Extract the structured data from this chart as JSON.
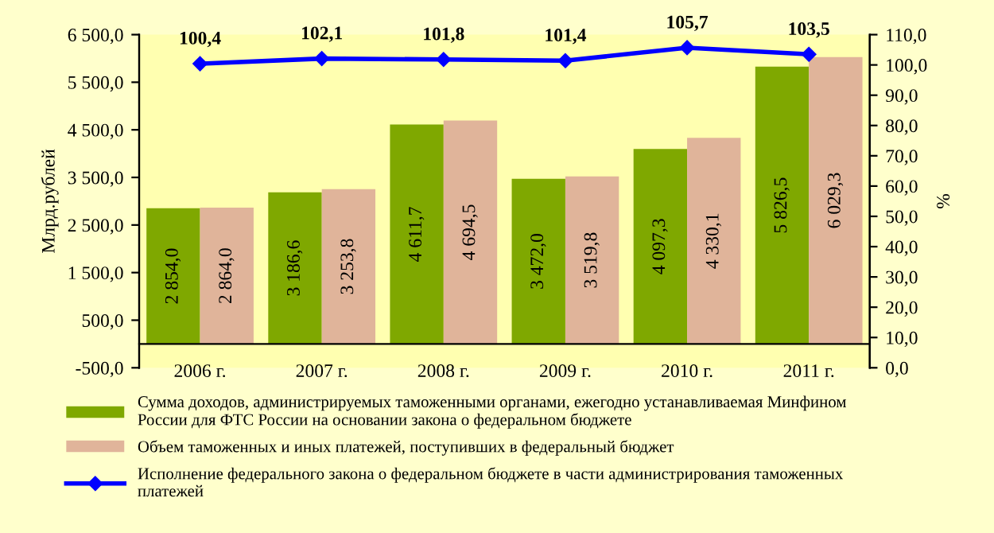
{
  "chart_data": {
    "type": "bar",
    "ylabel": "Млрд.рублей",
    "y2label": "%",
    "categories": [
      "2006 г.",
      "2007 г.",
      "2008 г.",
      "2009 г.",
      "2010 г.",
      "2011 г."
    ],
    "series": [
      {
        "name": "Сумма доходов, администрируемых таможенными органами, ежегодно устанавливаемая Минфином России для ФТС России на основании закона о федеральном бюджете",
        "color": "#7fa800",
        "values": [
          2854.0,
          3186.6,
          4611.7,
          3472.0,
          4097.3,
          5826.5
        ],
        "value_labels": [
          "2 854,0",
          "3 186,6",
          "4 611,7",
          "3 472,0",
          "4 097,3",
          "5 826,5"
        ]
      },
      {
        "name": "Объем таможенных и иных платежей, поступивших в федеральный бюджет",
        "color": "#e0b49a",
        "values": [
          2864.0,
          3253.8,
          4694.5,
          3519.8,
          4330.1,
          6029.3
        ],
        "value_labels": [
          "2 864,0",
          "3 253,8",
          "4 694,5",
          "3 519,8",
          "4 330,1",
          "6 029,3"
        ]
      },
      {
        "name": "Исполнение федерального закона о федеральном бюджете в части администрирования таможенных платежей",
        "type": "line",
        "axis": "y2",
        "color": "#0000ff",
        "marker": "diamond",
        "values": [
          100.4,
          102.1,
          101.8,
          101.4,
          105.7,
          103.5
        ],
        "value_labels": [
          "100,4",
          "102,1",
          "101,8",
          "101,4",
          "105,7",
          "103,5"
        ]
      }
    ],
    "ylim": [
      -500,
      6500
    ],
    "yticks": [
      {
        "value": -500,
        "label": "-500,0"
      },
      {
        "value": 500,
        "label": "500,0"
      },
      {
        "value": 1500,
        "label": "1 500,0"
      },
      {
        "value": 2500,
        "label": "2 500,0"
      },
      {
        "value": 3500,
        "label": "3 500,0"
      },
      {
        "value": 4500,
        "label": "4 500,0"
      },
      {
        "value": 5500,
        "label": "5 500,0"
      },
      {
        "value": 6500,
        "label": "6 500,0"
      }
    ],
    "y2lim": [
      0,
      110
    ],
    "y2ticks": [
      {
        "value": 0,
        "label": "0,0"
      },
      {
        "value": 10,
        "label": "10,0"
      },
      {
        "value": 20,
        "label": "20,0"
      },
      {
        "value": 30,
        "label": "30,0"
      },
      {
        "value": 40,
        "label": "40,0"
      },
      {
        "value": 50,
        "label": "50,0"
      },
      {
        "value": 60,
        "label": "60,0"
      },
      {
        "value": 70,
        "label": "70,0"
      },
      {
        "value": 80,
        "label": "80,0"
      },
      {
        "value": 90,
        "label": "90,0"
      },
      {
        "value": 100,
        "label": "100,0"
      },
      {
        "value": 110,
        "label": "110,0"
      }
    ],
    "legend": "bottom",
    "grid": false
  }
}
